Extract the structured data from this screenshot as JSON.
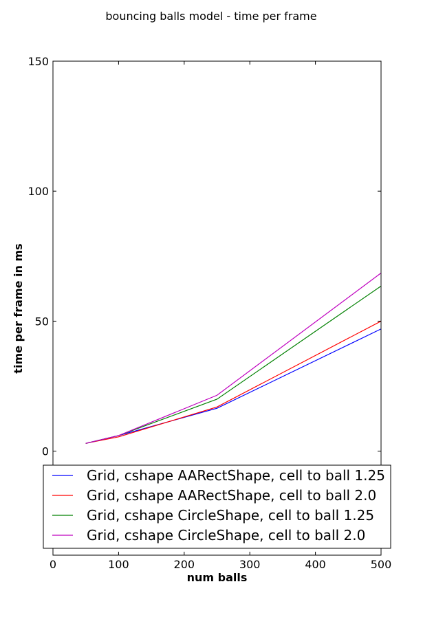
{
  "chart_data": {
    "type": "line",
    "title": "bouncing balls model - time per frame",
    "xlabel": "num balls",
    "ylabel": "time per frame in ms",
    "xlim": [
      0,
      500
    ],
    "ylim": [
      -40,
      150
    ],
    "xticks": [
      0,
      100,
      200,
      300,
      400,
      500
    ],
    "yticks": [
      0,
      50,
      100,
      150
    ],
    "grid": false,
    "legend_position": "lower-center",
    "x": [
      50,
      100,
      250,
      500
    ],
    "series": [
      {
        "name": "Grid, cshape AARectShape, cell to ball 1.25",
        "color": "#0000ff",
        "values": [
          3.0,
          6.0,
          16.5,
          47.0
        ]
      },
      {
        "name": "Grid, cshape AARectShape, cell to ball 2.0",
        "color": "#ff0000",
        "values": [
          3.0,
          5.5,
          17.0,
          50.0
        ]
      },
      {
        "name": "Grid, cshape CircleShape, cell to ball 1.25",
        "color": "#008000",
        "values": [
          3.0,
          6.0,
          20.0,
          63.5
        ]
      },
      {
        "name": "Grid, cshape CircleShape, cell to ball 2.0",
        "color": "#bf00bf",
        "values": [
          3.0,
          6.0,
          21.5,
          68.5
        ]
      }
    ]
  }
}
